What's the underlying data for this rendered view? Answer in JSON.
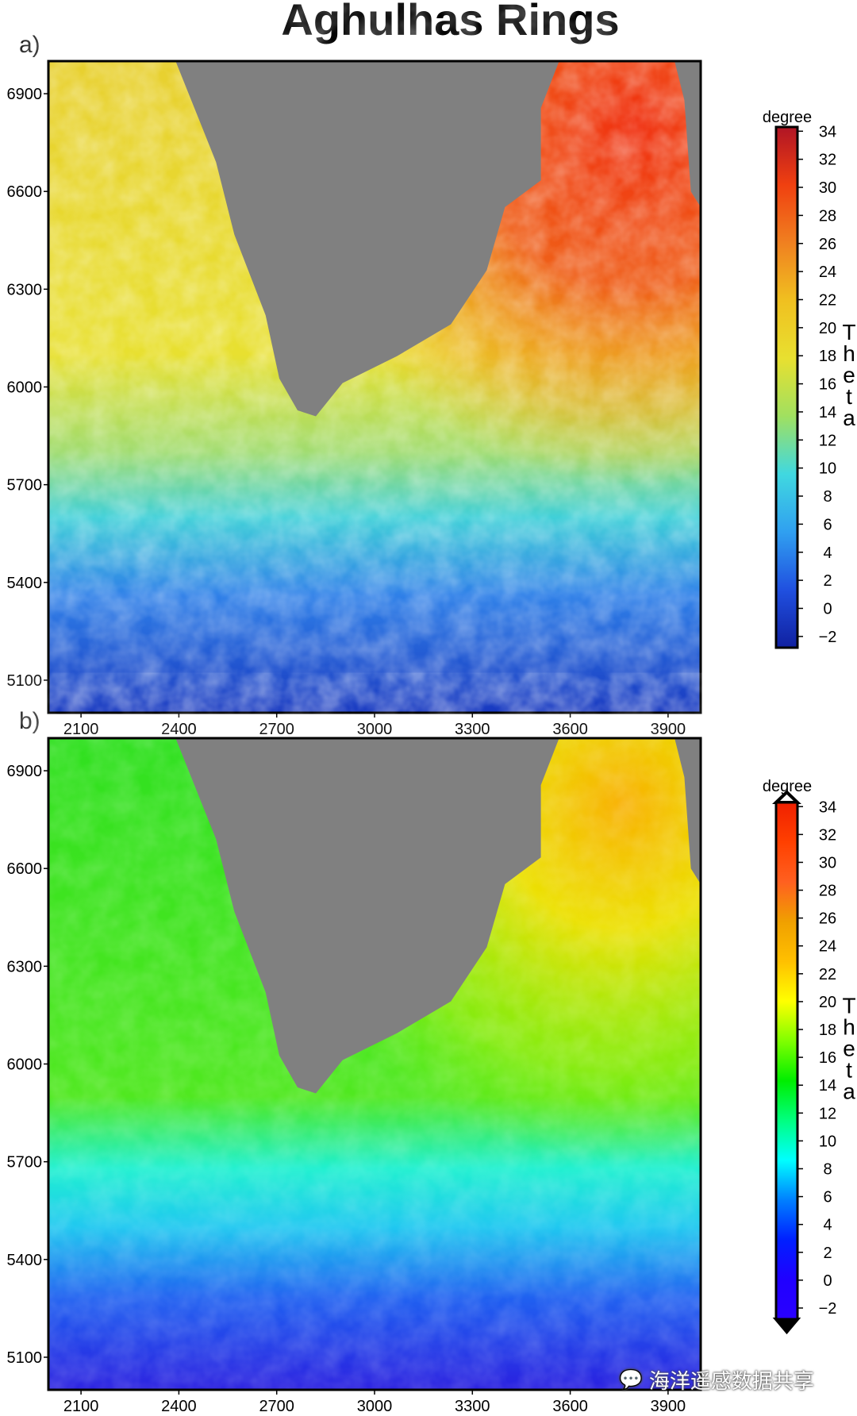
{
  "title": "Aghulhas Rings",
  "panels": [
    {
      "label": "a)",
      "colorbar_label": "Theta",
      "colorbar_unit": "degree",
      "shading": "hillshade",
      "palette": [
        "#1020a0",
        "#2050e0",
        "#30a0f0",
        "#40d8e0",
        "#a0e060",
        "#e8e030",
        "#f0c020",
        "#f08020",
        "#f04010",
        "#b01525"
      ]
    },
    {
      "label": "b)",
      "colorbar_label": "Theta",
      "colorbar_unit": "degree",
      "shading": "none",
      "palette": [
        "#2a00ff",
        "#2000ff",
        "#0020ff",
        "#0080ff",
        "#00ffff",
        "#00ff80",
        "#00ee00",
        "#80ff00",
        "#ffff00",
        "#ffc000",
        "#f0a000",
        "#ff6020",
        "#ff4000",
        "#f02000"
      ]
    }
  ],
  "chart_data": [
    {
      "type": "heatmap",
      "title": "Aghulhas Rings",
      "panel": "a)",
      "xlim": [
        2000,
        4000
      ],
      "ylim": [
        5000,
        7000
      ],
      "xticks": [
        2100,
        2400,
        2700,
        3000,
        3300,
        3600,
        3900
      ],
      "yticks": [
        5100,
        5400,
        5700,
        6000,
        6300,
        6600,
        6900
      ],
      "colorbar": {
        "label": "Theta",
        "unit": "degree",
        "ticks": [
          34,
          32,
          30,
          28,
          26,
          24,
          22,
          20,
          18,
          16,
          14,
          12,
          10,
          8,
          6,
          4,
          2,
          0,
          -2
        ]
      },
      "land_color": "#808080"
    },
    {
      "type": "heatmap",
      "panel": "b)",
      "xlim": [
        2000,
        4000
      ],
      "ylim": [
        5000,
        7000
      ],
      "xticks": [
        2100,
        2400,
        2700,
        3000,
        3300,
        3600,
        3900
      ],
      "yticks": [
        5100,
        5400,
        5700,
        6000,
        6300,
        6600,
        6900
      ],
      "colorbar": {
        "label": "Theta",
        "unit": "degree",
        "ticks": [
          34,
          32,
          30,
          28,
          26,
          24,
          22,
          20,
          18,
          16,
          14,
          12,
          10,
          8,
          6,
          4,
          2,
          0,
          -2
        ],
        "extend": "both"
      },
      "land_color": "#808080"
    }
  ],
  "watermark": "海洋遥感数据共享"
}
